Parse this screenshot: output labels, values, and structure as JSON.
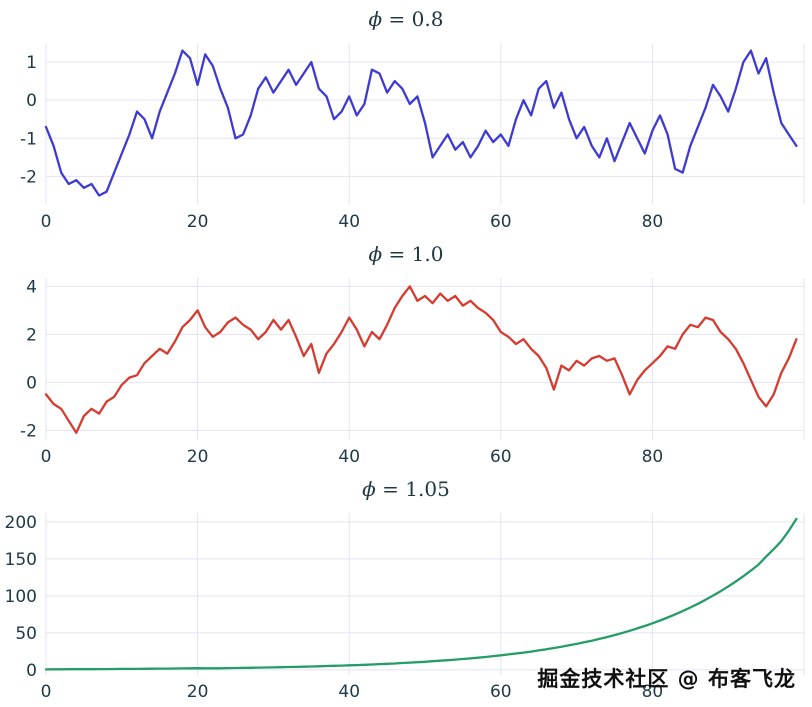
{
  "watermark": "掘金技术社区 @ 布客飞龙",
  "chart_data": [
    {
      "type": "line",
      "title": "ϕ = 0.8",
      "title_symbol": "ϕ",
      "title_suffix": " = 0.8",
      "color": "#3d3bd1",
      "xlim": [
        0,
        100
      ],
      "ylim": [
        -2.75,
        1.5
      ],
      "x_ticks": [
        0,
        20,
        40,
        60,
        80
      ],
      "x_gridlines": [
        0,
        20,
        40,
        60,
        80,
        100
      ],
      "y_ticks": [
        -2,
        -1,
        0,
        1
      ],
      "values": [
        -0.7,
        -1.2,
        -1.9,
        -2.2,
        -2.1,
        -2.3,
        -2.2,
        -2.5,
        -2.4,
        -1.9,
        -1.4,
        -0.9,
        -0.3,
        -0.5,
        -1.0,
        -0.3,
        0.2,
        0.7,
        1.3,
        1.1,
        0.4,
        1.2,
        0.9,
        0.3,
        -0.2,
        -1.0,
        -0.9,
        -0.4,
        0.3,
        0.6,
        0.2,
        0.5,
        0.8,
        0.4,
        0.7,
        1.0,
        0.3,
        0.1,
        -0.5,
        -0.3,
        0.1,
        -0.4,
        -0.1,
        0.8,
        0.7,
        0.2,
        0.5,
        0.3,
        -0.1,
        0.1,
        -0.6,
        -1.5,
        -1.2,
        -0.9,
        -1.3,
        -1.1,
        -1.5,
        -1.2,
        -0.8,
        -1.1,
        -0.9,
        -1.2,
        -0.5,
        0.0,
        -0.4,
        0.3,
        0.5,
        -0.2,
        0.2,
        -0.5,
        -1.0,
        -0.7,
        -1.2,
        -1.5,
        -1.0,
        -1.6,
        -1.1,
        -0.6,
        -1.0,
        -1.4,
        -0.8,
        -0.4,
        -0.9,
        -1.8,
        -1.9,
        -1.2,
        -0.7,
        -0.2,
        0.4,
        0.1,
        -0.3,
        0.3,
        1.0,
        1.3,
        0.7,
        1.1,
        0.2,
        -0.6,
        -0.9,
        -1.2
      ]
    },
    {
      "type": "line",
      "title": "ϕ = 1.0",
      "title_symbol": "ϕ",
      "title_suffix": " = 1.0",
      "color": "#d63b2f",
      "xlim": [
        0,
        100
      ],
      "ylim": [
        -2.4,
        4.35
      ],
      "x_ticks": [
        0,
        20,
        40,
        60,
        80
      ],
      "x_gridlines": [
        0,
        20,
        40,
        60,
        80,
        100
      ],
      "y_ticks": [
        -2,
        0,
        2,
        4
      ],
      "values": [
        -0.5,
        -0.9,
        -1.1,
        -1.6,
        -2.1,
        -1.4,
        -1.1,
        -1.3,
        -0.8,
        -0.6,
        -0.1,
        0.2,
        0.3,
        0.8,
        1.1,
        1.4,
        1.2,
        1.7,
        2.3,
        2.6,
        3.0,
        2.3,
        1.9,
        2.1,
        2.5,
        2.7,
        2.4,
        2.2,
        1.8,
        2.1,
        2.6,
        2.2,
        2.6,
        1.9,
        1.1,
        1.6,
        0.4,
        1.2,
        1.6,
        2.1,
        2.7,
        2.2,
        1.5,
        2.1,
        1.8,
        2.4,
        3.1,
        3.6,
        4.0,
        3.4,
        3.6,
        3.3,
        3.7,
        3.4,
        3.6,
        3.2,
        3.4,
        3.1,
        2.9,
        2.6,
        2.1,
        1.9,
        1.6,
        1.8,
        1.4,
        1.1,
        0.6,
        -0.3,
        0.7,
        0.5,
        0.9,
        0.7,
        1.0,
        1.1,
        0.9,
        1.0,
        0.3,
        -0.5,
        0.1,
        0.5,
        0.8,
        1.1,
        1.5,
        1.4,
        2.0,
        2.4,
        2.3,
        2.7,
        2.6,
        2.1,
        1.8,
        1.4,
        0.8,
        0.1,
        -0.6,
        -1.0,
        -0.5,
        0.4,
        1.0,
        1.8
      ]
    },
    {
      "type": "line",
      "title": "ϕ = 1.05",
      "title_symbol": "ϕ",
      "title_suffix": " = 1.05",
      "color": "#259d66",
      "xlim": [
        0,
        100
      ],
      "ylim": [
        -7,
        212
      ],
      "x_ticks": [
        0,
        20,
        40,
        60,
        80
      ],
      "x_gridlines": [
        0,
        20,
        40,
        60,
        80,
        100
      ],
      "y_ticks": [
        0,
        50,
        100,
        150,
        200
      ],
      "values": [
        0.6,
        0.7,
        0.7,
        0.8,
        0.8,
        0.9,
        0.9,
        1.0,
        1.0,
        1.1,
        1.2,
        1.2,
        1.3,
        1.4,
        1.5,
        1.6,
        1.7,
        1.8,
        1.9,
        2.0,
        2.2,
        2.1,
        2.0,
        2.1,
        2.3,
        2.4,
        2.6,
        2.8,
        3.0,
        3.1,
        3.3,
        3.5,
        3.8,
        4.0,
        4.2,
        4.5,
        4.8,
        5.1,
        5.4,
        5.7,
        6.1,
        6.4,
        6.8,
        7.2,
        7.7,
        8.1,
        8.6,
        9.2,
        9.7,
        10.3,
        10.9,
        11.6,
        12.3,
        13.0,
        13.8,
        14.6,
        15.5,
        16.4,
        17.4,
        18.5,
        19.6,
        20.8,
        22.0,
        23.3,
        24.7,
        26.2,
        27.8,
        29.5,
        31.2,
        33.1,
        35.1,
        37.2,
        39.4,
        41.8,
        44.3,
        47.0,
        49.8,
        52.8,
        56.0,
        59.3,
        62.9,
        66.7,
        70.7,
        74.9,
        79.4,
        84.2,
        89.2,
        94.6,
        100.3,
        106.3,
        112.7,
        119.4,
        126.6,
        134.2,
        142.2,
        153.0,
        163.0,
        174.0,
        188.0,
        204.0
      ]
    }
  ]
}
